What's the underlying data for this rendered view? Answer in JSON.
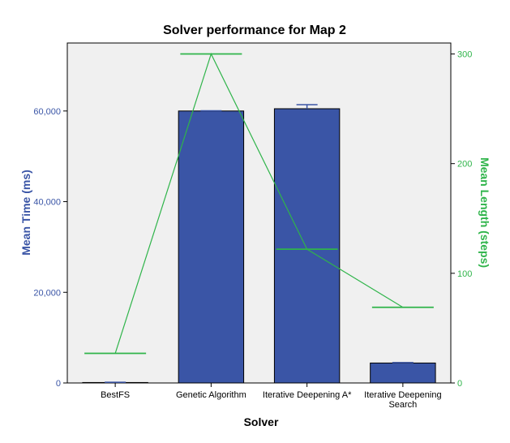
{
  "chart_data": {
    "type": "bar",
    "title": "Solver performance for Map 2",
    "xlabel": "Solver",
    "ylabel": "Mean Time (ms)",
    "y2label": "Mean Length (steps)",
    "categories": [
      "BestFS",
      "Genetic Algorithm",
      "Iterative Deepening A*",
      "Iterative Deepening Search"
    ],
    "category_lines": [
      [
        "BestFS"
      ],
      [
        "Genetic Algorithm"
      ],
      [
        "Iterative Deepening A*"
      ],
      [
        "Iterative Deepening",
        "Search"
      ]
    ],
    "series": [
      {
        "axis": "left",
        "kind": "bar",
        "values": [
          100,
          60000,
          60500,
          4400
        ],
        "error_upper": [
          150,
          60050,
          61400,
          4500
        ]
      },
      {
        "axis": "right",
        "kind": "line",
        "values": [
          27,
          300,
          122,
          69
        ]
      }
    ],
    "ylim": [
      0,
      75000
    ],
    "y2lim": [
      0,
      310
    ],
    "yticks": [
      0,
      20000,
      40000,
      60000
    ],
    "ytick_labels": [
      "0",
      "20,000",
      "40,000",
      "60,000"
    ],
    "y2ticks": [
      0,
      100,
      200,
      300
    ],
    "y2tick_labels": [
      "0",
      "100",
      "200",
      "300"
    ],
    "grid": false,
    "colors": {
      "bar_fill": "#3a55a6",
      "bar_stroke": "#000000",
      "line": "#2fb44a",
      "plot_bg": "#f0f0f0",
      "left_axis_text": "#3a55a6",
      "right_axis_text": "#2fb44a"
    }
  }
}
